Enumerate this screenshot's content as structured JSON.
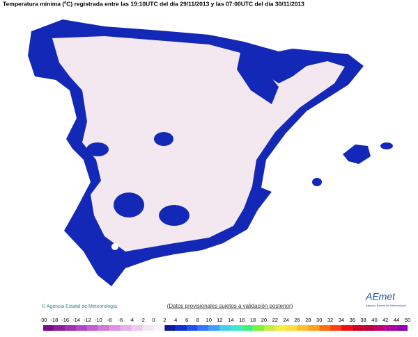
{
  "header": {
    "title": "Temperatura mínima (ºC) registrada entre las 19:10UTC del día 29/11/2013 y las 07:00UTC del día 30/11/2013"
  },
  "footer": {
    "credit": "© Agencia Estatal de Meteorología",
    "notice": "(Datos provisionales sujetos a validación posterior)",
    "logo": "AEmet",
    "logo_caption": "Agencia Estatal de Meteorología"
  },
  "legend": {
    "labels": [
      -30,
      -18,
      -16,
      -14,
      -12,
      -10,
      -8,
      -6,
      -4,
      -2,
      0,
      2,
      4,
      6,
      8,
      10,
      12,
      14,
      16,
      18,
      20,
      22,
      24,
      26,
      28,
      30,
      32,
      34,
      36,
      38,
      40,
      42,
      44,
      50
    ],
    "colors": [
      "#7a0c8c",
      "#8e1ea0",
      "#a030b4",
      "#b448c4",
      "#c460d0",
      "#d07ad8",
      "#dc94e0",
      "#e6b0e8",
      "#eccbef",
      "#f4e4f4",
      "#faf2fa",
      "#0a1aa0",
      "#1030d0",
      "#2050f0",
      "#3078ff",
      "#40a0ff",
      "#40d0f0",
      "#40e8c8",
      "#40f080",
      "#80f040",
      "#c0f040",
      "#f0f040",
      "#ffe040",
      "#ffc030",
      "#ffa020",
      "#ff7010",
      "#ff4010",
      "#f01010",
      "#d00020",
      "#c00040",
      "#c00070",
      "#b000a0",
      "#9000b0"
    ]
  }
}
